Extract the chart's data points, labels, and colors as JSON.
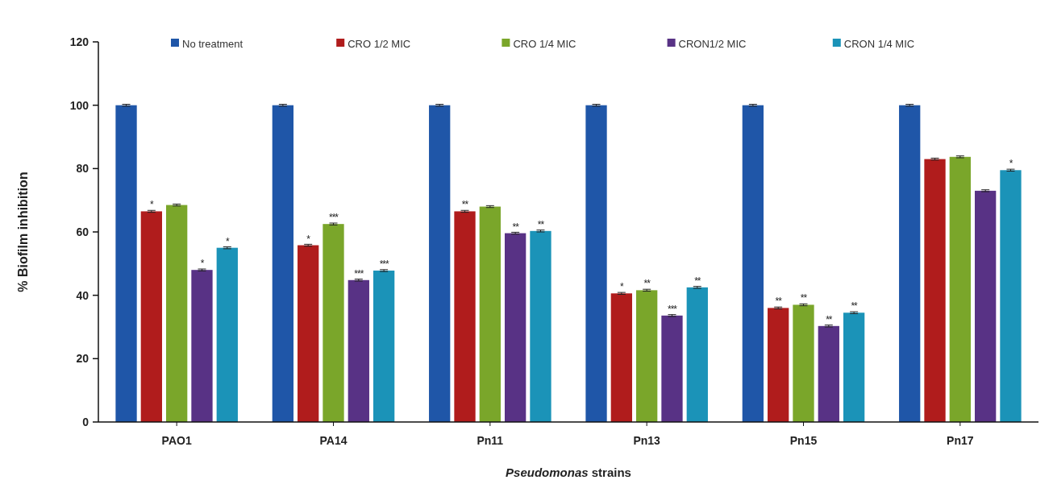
{
  "chart_data": {
    "type": "bar",
    "xlabel": "Pseudomonas strains",
    "ylabel": "% Biofilm inhibition",
    "categories": [
      "PAO1",
      "PA14",
      "Pn11",
      "Pn13",
      "Pn15",
      "Pn17"
    ],
    "series": [
      {
        "name": "No treatment",
        "color": "#1f56a8",
        "values": [
          100,
          100,
          100,
          100,
          100,
          100
        ],
        "errors": [
          0.3,
          0.3,
          0.3,
          0.3,
          0.3,
          0.3
        ]
      },
      {
        "name": "CRO 1/2 MIC",
        "color": "#b01c1c",
        "values": [
          66.5,
          55.8,
          66.5,
          40.6,
          36,
          83
        ],
        "errors": [
          0.3,
          0.3,
          0.3,
          0.3,
          0.3,
          0.3
        ],
        "value_labels": [
          "*",
          "*",
          "**",
          "*",
          "**",
          null
        ]
      },
      {
        "name": "CRO 1/4 MIC",
        "color": "#7aa62a",
        "values": [
          68.5,
          62.5,
          68,
          41.6,
          37,
          83.7
        ],
        "errors": [
          0.3,
          0.3,
          0.3,
          0.3,
          0.3,
          0.3
        ],
        "value_labels": [
          null,
          "***",
          null,
          "**",
          "**",
          null
        ]
      },
      {
        "name": "CRON1/2 MIC",
        "color": "#583285",
        "values": [
          48,
          44.8,
          59.6,
          33.6,
          30.3,
          73
        ],
        "errors": [
          0.3,
          0.3,
          0.3,
          0.3,
          0.3,
          0.3
        ],
        "value_labels": [
          "*",
          "***",
          "**",
          "***",
          "**",
          null
        ]
      },
      {
        "name": "CRON 1/4 MIC",
        "color": "#1b93b8",
        "values": [
          55,
          47.8,
          60.3,
          42.5,
          34.5,
          79.5
        ],
        "errors": [
          0.3,
          0.3,
          0.3,
          0.3,
          0.3,
          0.3
        ],
        "value_labels": [
          "*",
          "***",
          "**",
          "**",
          "**",
          "*"
        ]
      }
    ],
    "ylim": [
      0,
      120
    ],
    "yticks": [
      0,
      20,
      40,
      60,
      80,
      100,
      120
    ],
    "legend": "top"
  }
}
